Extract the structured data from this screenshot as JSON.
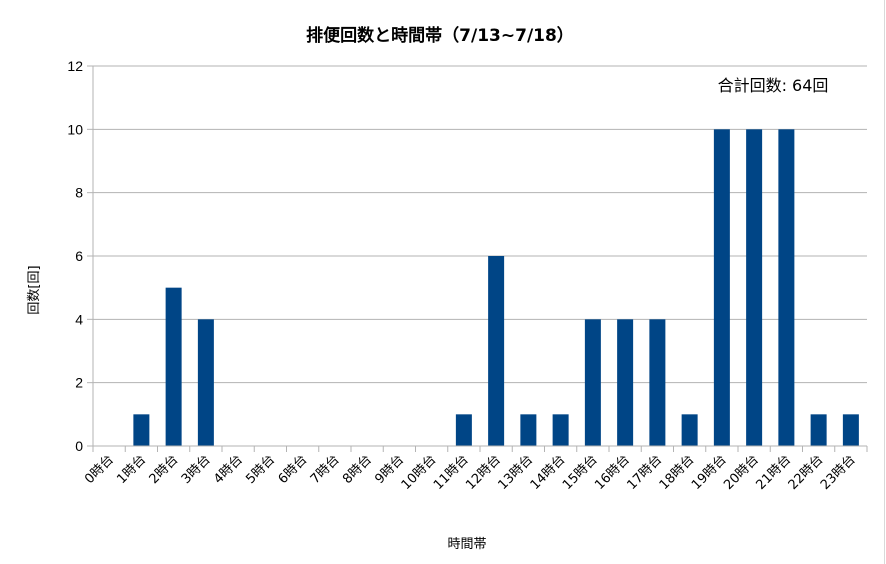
{
  "chart_data": {
    "type": "bar",
    "title": "排便回数と時間帯（7/13~7/18）",
    "xlabel": "時間帯",
    "ylabel": "回数[回]",
    "annotation": "合計回数: 64回",
    "ylim": [
      0,
      12
    ],
    "yticks": [
      0,
      2,
      4,
      6,
      8,
      10,
      12
    ],
    "grid": true,
    "legend": "none",
    "bar_color": "#004586",
    "categories": [
      "0時台",
      "1時台",
      "2時台",
      "3時台",
      "4時台",
      "5時台",
      "6時台",
      "7時台",
      "8時台",
      "9時台",
      "10時台",
      "11時台",
      "12時台",
      "13時台",
      "14時台",
      "15時台",
      "16時台",
      "17時台",
      "18時台",
      "19時台",
      "20時台",
      "21時台",
      "22時台",
      "23時台"
    ],
    "values": [
      0,
      1,
      5,
      4,
      0,
      0,
      0,
      0,
      0,
      0,
      0,
      1,
      6,
      1,
      1,
      4,
      4,
      4,
      1,
      10,
      10,
      10,
      1,
      1
    ]
  }
}
